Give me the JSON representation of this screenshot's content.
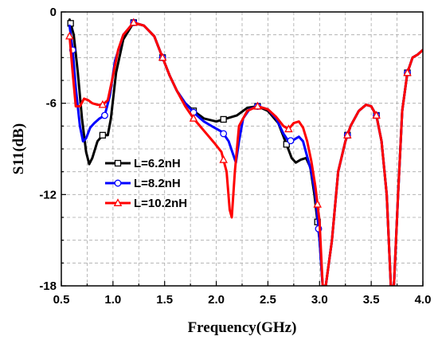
{
  "chart_data": {
    "type": "line",
    "xlabel": "Frequency(GHz)",
    "ylabel": "S11(dB)",
    "xlim": [
      0.5,
      4.0
    ],
    "ylim": [
      -18,
      0
    ],
    "xticks": [
      "0.5",
      "1.0",
      "1.5",
      "2.0",
      "2.5",
      "3.0",
      "3.5",
      "4.0"
    ],
    "yticks": [
      "0",
      "-6",
      "-12",
      "-18"
    ],
    "grid": true,
    "legend_position": "center-left",
    "series": [
      {
        "name": "L=6.2nH",
        "color": "#000000",
        "marker": "square",
        "x": [
          0.58,
          0.62,
          0.66,
          0.7,
          0.74,
          0.77,
          0.8,
          0.85,
          0.9,
          0.95,
          0.98,
          1.03,
          1.1,
          1.2,
          1.3,
          1.4,
          1.48,
          1.55,
          1.62,
          1.7,
          1.78,
          1.88,
          2.0,
          2.1,
          2.2,
          2.3,
          2.4,
          2.5,
          2.6,
          2.68,
          2.73,
          2.77,
          2.82,
          2.87,
          2.91,
          2.95,
          3.0,
          3.03,
          3.06,
          3.12,
          3.18,
          3.25,
          3.3,
          3.38,
          3.45,
          3.5,
          3.55,
          3.6,
          3.65,
          3.69,
          3.72,
          3.76,
          3.8,
          3.85,
          3.9,
          3.95,
          4.0
        ],
        "y": [
          -0.5,
          -1.5,
          -4.0,
          -7.0,
          -9.2,
          -10.0,
          -9.6,
          -8.5,
          -8.1,
          -8.1,
          -7.0,
          -4.0,
          -1.8,
          -0.7,
          -0.9,
          -1.6,
          -3.0,
          -4.2,
          -5.2,
          -6.0,
          -6.5,
          -7.0,
          -7.2,
          -7.0,
          -6.8,
          -6.3,
          -6.2,
          -6.5,
          -7.3,
          -8.7,
          -9.6,
          -9.9,
          -9.7,
          -9.6,
          -10.2,
          -12.0,
          -15.0,
          -18.0,
          -18.0,
          -15.0,
          -10.5,
          -8.5,
          -7.5,
          -6.5,
          -6.1,
          -6.2,
          -6.8,
          -8.5,
          -12.0,
          -18.0,
          -18.0,
          -12.0,
          -6.5,
          -4.0,
          -3.0,
          -2.8,
          -2.5
        ],
        "markers_x": [
          0.59,
          0.9,
          1.2,
          1.48,
          1.78,
          2.07,
          2.4,
          2.68,
          2.98,
          3.27,
          3.55,
          3.85
        ]
      },
      {
        "name": "L=8.2nH",
        "color": "#0000ff",
        "marker": "circle",
        "x": [
          0.58,
          0.61,
          0.64,
          0.68,
          0.71,
          0.74,
          0.78,
          0.82,
          0.87,
          0.92,
          0.97,
          1.02,
          1.1,
          1.2,
          1.3,
          1.4,
          1.48,
          1.55,
          1.62,
          1.7,
          1.78,
          1.88,
          1.98,
          2.06,
          2.12,
          2.16,
          2.19,
          2.22,
          2.26,
          2.32,
          2.4,
          2.5,
          2.58,
          2.65,
          2.7,
          2.75,
          2.8,
          2.84,
          2.88,
          2.92,
          2.96,
          3.0,
          3.03,
          3.06,
          3.12,
          3.18,
          3.25,
          3.3,
          3.38,
          3.45,
          3.5,
          3.55,
          3.6,
          3.65,
          3.69,
          3.72,
          3.76,
          3.8,
          3.85,
          3.9,
          3.95,
          4.0
        ],
        "y": [
          -0.9,
          -2.5,
          -5.0,
          -7.5,
          -8.5,
          -8.3,
          -7.6,
          -7.3,
          -7.0,
          -6.8,
          -5.5,
          -3.2,
          -1.5,
          -0.7,
          -0.9,
          -1.6,
          -3.0,
          -4.2,
          -5.2,
          -6.0,
          -6.6,
          -7.2,
          -7.6,
          -7.9,
          -8.5,
          -9.3,
          -9.9,
          -8.5,
          -7.0,
          -6.4,
          -6.2,
          -6.4,
          -7.0,
          -8.0,
          -8.5,
          -8.4,
          -8.2,
          -8.5,
          -9.5,
          -10.5,
          -12.0,
          -15.0,
          -18.0,
          -18.0,
          -15.0,
          -10.5,
          -8.5,
          -7.5,
          -6.5,
          -6.1,
          -6.2,
          -6.8,
          -8.5,
          -12.0,
          -18.0,
          -18.0,
          -12.0,
          -6.5,
          -4.0,
          -3.0,
          -2.8,
          -2.5
        ],
        "markers_x": [
          0.61,
          0.92,
          1.2,
          1.48,
          1.78,
          2.07,
          2.4,
          2.72,
          2.99,
          3.27,
          3.55,
          3.85
        ]
      },
      {
        "name": "L=10.2nH",
        "color": "#ff0000",
        "marker": "triangle",
        "x": [
          0.58,
          0.61,
          0.64,
          0.68,
          0.72,
          0.76,
          0.8,
          0.85,
          0.9,
          0.95,
          1.0,
          1.05,
          1.1,
          1.2,
          1.3,
          1.4,
          1.48,
          1.55,
          1.62,
          1.7,
          1.78,
          1.88,
          1.98,
          2.05,
          2.1,
          2.13,
          2.15,
          2.18,
          2.22,
          2.3,
          2.4,
          2.5,
          2.58,
          2.65,
          2.7,
          2.75,
          2.8,
          2.84,
          2.88,
          2.92,
          2.96,
          3.0,
          3.03,
          3.06,
          3.12,
          3.18,
          3.25,
          3.3,
          3.38,
          3.45,
          3.5,
          3.55,
          3.6,
          3.65,
          3.69,
          3.72,
          3.76,
          3.8,
          3.85,
          3.9,
          3.95,
          4.0
        ],
        "y": [
          -1.6,
          -4.0,
          -6.2,
          -6.2,
          -5.7,
          -5.8,
          -6.0,
          -6.1,
          -6.1,
          -5.8,
          -4.2,
          -2.5,
          -1.5,
          -0.7,
          -0.9,
          -1.6,
          -3.0,
          -4.2,
          -5.2,
          -6.2,
          -7.0,
          -7.8,
          -8.6,
          -9.2,
          -10.5,
          -13.0,
          -13.5,
          -10.5,
          -7.5,
          -6.5,
          -6.2,
          -6.4,
          -6.9,
          -7.5,
          -7.7,
          -7.3,
          -7.2,
          -7.6,
          -8.5,
          -9.8,
          -11.5,
          -13.8,
          -18.0,
          -18.0,
          -15.0,
          -10.5,
          -8.5,
          -7.5,
          -6.5,
          -6.1,
          -6.2,
          -6.8,
          -8.5,
          -12.0,
          -18.0,
          -18.0,
          -12.0,
          -6.5,
          -4.0,
          -3.0,
          -2.8,
          -2.5
        ],
        "markers_x": [
          0.58,
          0.9,
          1.2,
          1.48,
          1.78,
          2.07,
          2.4,
          2.7,
          2.98,
          3.27,
          3.55,
          3.85
        ]
      }
    ]
  }
}
